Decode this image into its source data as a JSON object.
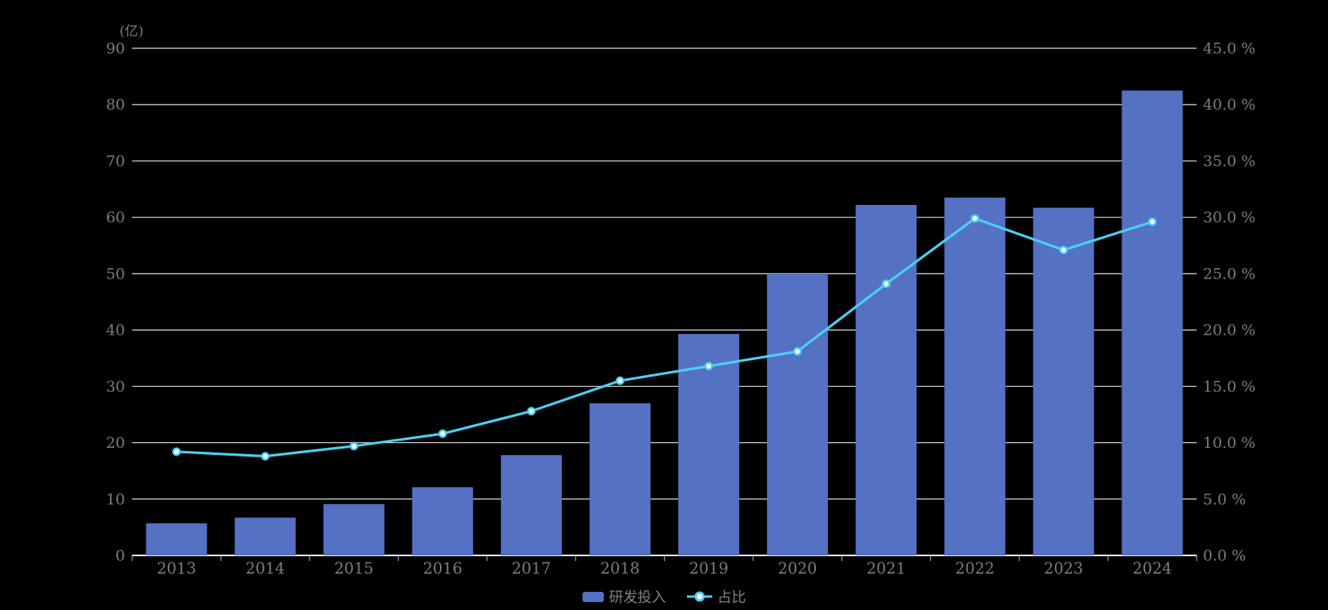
{
  "chart_data": {
    "type": "bar",
    "subtype": "bar-line-combo",
    "title": "",
    "background": "#000000",
    "categories": [
      "2013",
      "2014",
      "2015",
      "2016",
      "2017",
      "2018",
      "2019",
      "2020",
      "2021",
      "2022",
      "2023",
      "2024"
    ],
    "series": [
      {
        "name": "研发投入",
        "type": "bar",
        "axis": "left",
        "unit": "亿",
        "color": "#5571C4",
        "values": [
          5.7,
          6.7,
          9.1,
          12.1,
          17.8,
          27.0,
          39.3,
          50.0,
          62.2,
          63.5,
          61.7,
          82.5
        ]
      },
      {
        "name": "占比",
        "type": "line",
        "axis": "right",
        "unit": "%",
        "color": "#4CCFEF",
        "marker": "circle-white-core",
        "values": [
          9.2,
          8.8,
          9.7,
          10.8,
          12.8,
          15.5,
          16.8,
          18.1,
          24.1,
          29.9,
          27.1,
          29.6
        ]
      }
    ],
    "left_axis": {
      "name": "(亿)",
      "min": 0,
      "max": 90,
      "step": 10,
      "tick_labels": [
        "0",
        "10",
        "20",
        "30",
        "40",
        "50",
        "60",
        "70",
        "80",
        "90"
      ]
    },
    "right_axis": {
      "min": 0,
      "max": 45,
      "step": 5,
      "tick_labels": [
        "0.0 %",
        "5.0 %",
        "10.0 %",
        "15.0 %",
        "20.0 %",
        "25.0 %",
        "30.0 %",
        "35.0 %",
        "40.0 %",
        "45.0 %"
      ]
    },
    "legend": [
      "研发投入",
      "占比"
    ],
    "legend_position": "bottom-center",
    "grid": true,
    "colors": {
      "axis_text": "#797d87",
      "grid_line": "rgba(255,255,255,0.88)",
      "axis_line": "#f2f4f8",
      "x_tick": "#9ca0a8",
      "bar": "#5571C4",
      "line": "#4CCFEF",
      "marker_core": "#ffffff"
    }
  }
}
